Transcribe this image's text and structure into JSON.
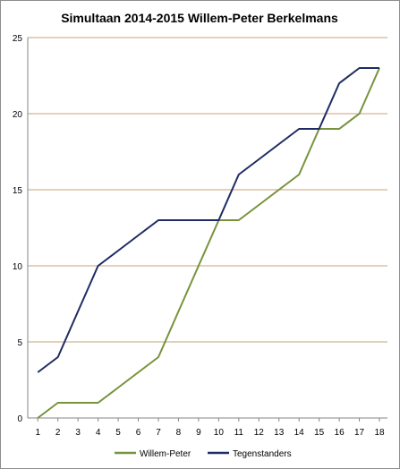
{
  "chart_data": {
    "type": "line",
    "title": "Simultaan 2014-2015 Willem-Peter Berkelmans",
    "xlabel": "",
    "ylabel": "",
    "x": [
      1,
      2,
      3,
      4,
      5,
      6,
      7,
      8,
      9,
      10,
      11,
      12,
      13,
      14,
      15,
      16,
      17,
      18
    ],
    "ylim": [
      0,
      25
    ],
    "yticks": [
      0,
      5,
      10,
      15,
      20,
      25
    ],
    "grid": "horizontal",
    "legend": "bottom",
    "series": [
      {
        "name": "Willem-Peter",
        "color": "#77933c",
        "values": [
          0,
          1,
          1,
          1,
          2,
          3,
          4,
          7,
          10,
          13,
          13,
          14,
          15,
          16,
          19,
          19,
          20,
          23
        ]
      },
      {
        "name": "Tegenstanders",
        "color": "#1f2c63",
        "values": [
          3,
          4,
          7,
          10,
          11,
          12,
          13,
          13,
          13,
          13,
          16,
          17,
          18,
          19,
          19,
          22,
          23,
          23
        ]
      }
    ],
    "gridline_color": "#c8a27a",
    "axis_color": "#868686"
  }
}
